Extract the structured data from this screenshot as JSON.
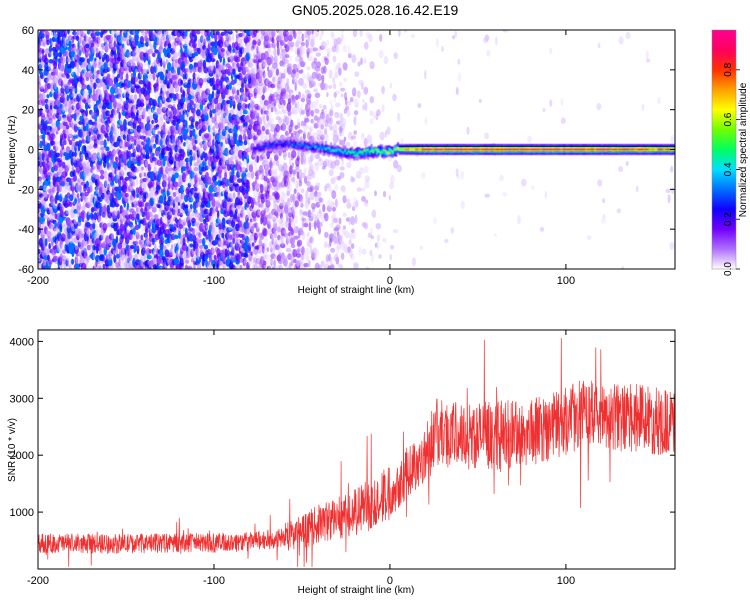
{
  "title": "GN05.2025.028.16.42.E19",
  "chart_data": [
    {
      "type": "heatmap",
      "xlabel": "Height of straight line (km)",
      "ylabel": "Frequency (Hz)",
      "xlim": [
        -200,
        162
      ],
      "ylim": [
        -60,
        60
      ],
      "x_ticks": [
        -200,
        -100,
        0,
        100
      ],
      "y_ticks": [
        -60,
        -40,
        -20,
        0,
        20,
        40,
        60
      ],
      "colorbar": {
        "label": "Normalized spectral amplitude",
        "range": [
          0,
          0.96
        ],
        "ticks": [
          0.0,
          0.2,
          0.4,
          0.6,
          0.8
        ],
        "colors": [
          "#ffffff",
          "#b070ff",
          "#7000ff",
          "#1000ff",
          "#0070ff",
          "#00e0ff",
          "#00ff60",
          "#70ff00",
          "#ffff00",
          "#ffa000",
          "#ff3000",
          "#ff0060",
          "#ff0090"
        ]
      },
      "carrier_track": [
        {
          "x": -78,
          "freq": 0,
          "amp": 0.25
        },
        {
          "x": -70,
          "freq": 2,
          "amp": 0.3
        },
        {
          "x": -60,
          "freq": 3,
          "amp": 0.3
        },
        {
          "x": -50,
          "freq": 2,
          "amp": 0.35
        },
        {
          "x": -40,
          "freq": 1,
          "amp": 0.4
        },
        {
          "x": -30,
          "freq": -1,
          "amp": 0.45
        },
        {
          "x": -20,
          "freq": -2,
          "amp": 0.5
        },
        {
          "x": -10,
          "freq": -1,
          "amp": 0.55
        },
        {
          "x": 0,
          "freq": -1,
          "amp": 0.6
        },
        {
          "x": 5,
          "freq": 0,
          "amp": 0.65
        },
        {
          "x": 20,
          "freq": 0,
          "amp": 0.9
        },
        {
          "x": 60,
          "freq": 0,
          "amp": 0.9
        },
        {
          "x": 100,
          "freq": 0,
          "amp": 0.9
        },
        {
          "x": 140,
          "freq": 0,
          "amp": 0.85
        },
        {
          "x": 162,
          "freq": 0,
          "amp": 0.8
        }
      ]
    },
    {
      "type": "line",
      "xlabel": "Height of straight line (km)",
      "ylabel": "SNR (10 * v/v)",
      "xlim": [
        -200,
        162
      ],
      "ylim": [
        0,
        4200
      ],
      "x_ticks": [
        -200,
        -100,
        0,
        100
      ],
      "y_ticks": [
        1000,
        2000,
        3000,
        4000
      ],
      "color": "#f03030",
      "series": [
        {
          "x": [
            -200,
            -180,
            -160,
            -140,
            -120,
            -100,
            -80,
            -60,
            -50,
            -40,
            -30,
            -20,
            -10,
            0,
            10,
            20,
            25,
            40,
            60,
            80,
            100,
            110,
            120,
            140,
            162
          ],
          "y": [
            450,
            450,
            440,
            450,
            460,
            460,
            480,
            550,
            650,
            800,
            900,
            1000,
            1150,
            1350,
            1700,
            2000,
            2400,
            2350,
            2350,
            2400,
            2600,
            2750,
            2650,
            2650,
            2550
          ]
        }
      ]
    }
  ]
}
